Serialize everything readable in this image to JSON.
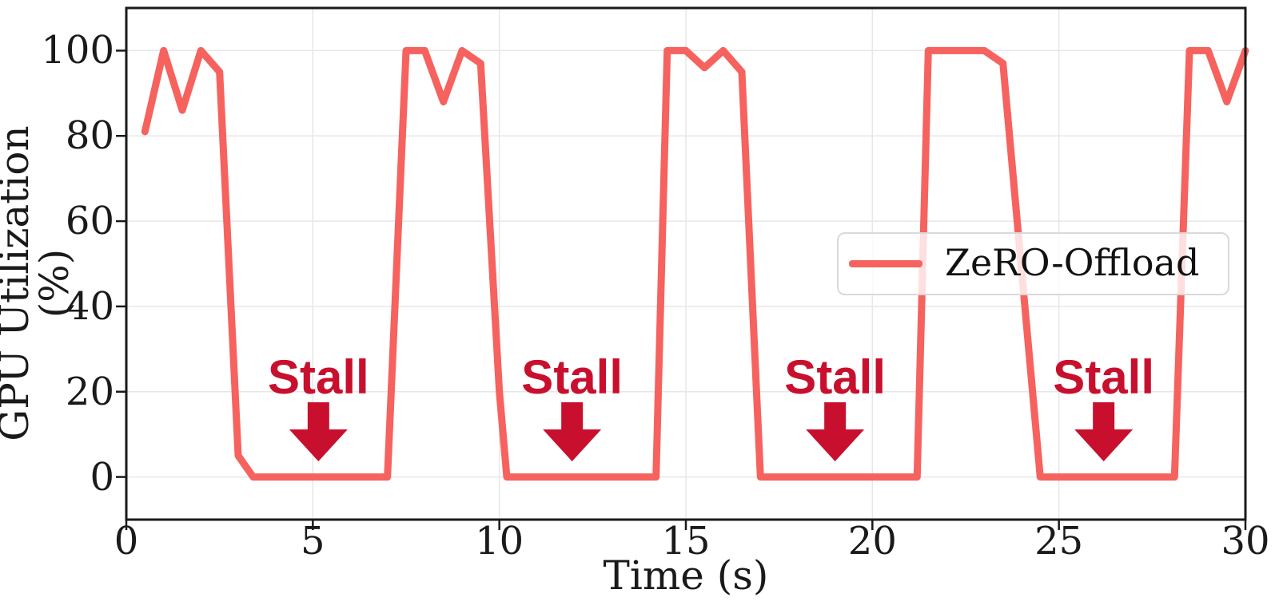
{
  "figure": {
    "background": "#ffffff",
    "frame_color": "#1a1a1a",
    "grid_color": "#e7e7e7",
    "tick_color": "#1a1a1a"
  },
  "chart_data": {
    "type": "line",
    "title": "",
    "xlabel": "Time (s)",
    "ylabel": "GPU Utilization (%)",
    "xlim": [
      0,
      30
    ],
    "ylim": [
      -10,
      110
    ],
    "xticks": [
      0,
      5,
      10,
      15,
      20,
      25,
      30
    ],
    "yticks": [
      0,
      20,
      40,
      60,
      80,
      100
    ],
    "grid": true,
    "legend": {
      "position": "center right",
      "entries": [
        {
          "label": "ZeRO-Offload",
          "color": "#F6625E"
        }
      ]
    },
    "series": [
      {
        "name": "ZeRO-Offload",
        "color": "#F6625E",
        "linewidth": 9,
        "x": [
          0.5,
          1,
          1.5,
          2,
          2.5,
          3,
          3.4,
          7,
          7.5,
          8,
          8.5,
          9,
          9.5,
          10,
          10.2,
          14.2,
          14.5,
          15,
          15.5,
          16,
          16.5,
          17,
          21.2,
          21.5,
          23,
          23.5,
          24.5,
          28.1,
          28.5,
          29,
          29.5,
          30
        ],
        "y": [
          81,
          100,
          86,
          100,
          95,
          5,
          0,
          0,
          100,
          100,
          88,
          100,
          97,
          20,
          0,
          0,
          100,
          100,
          96,
          100,
          95,
          0,
          0,
          100,
          100,
          97,
          0,
          0,
          100,
          100,
          88,
          100
        ]
      }
    ],
    "annotations": [
      {
        "label": "Stall",
        "t": 5.15,
        "color": "#C8102E"
      },
      {
        "label": "Stall",
        "t": 11.95,
        "color": "#C8102E"
      },
      {
        "label": "Stall",
        "t": 19.0,
        "color": "#C8102E"
      },
      {
        "label": "Stall",
        "t": 26.2,
        "color": "#C8102E"
      }
    ]
  }
}
